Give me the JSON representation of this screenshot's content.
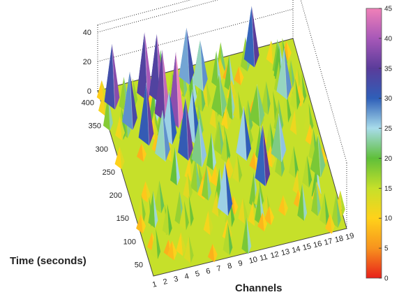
{
  "chart_data": {
    "type": "heatmap",
    "subtype": "3d-surface",
    "title": "",
    "xlabel": "Channels",
    "ylabel": "Time (seconds)",
    "zlabel": "",
    "x_ticks": [
      "1",
      "2",
      "3",
      "4",
      "5",
      "6",
      "7",
      "8",
      "9",
      "10",
      "11",
      "12",
      "13",
      "14",
      "15",
      "16",
      "17",
      "18",
      "19"
    ],
    "y_ticks": [
      "50",
      "100",
      "150",
      "200",
      "250",
      "300",
      "350",
      "400"
    ],
    "z_ticks": [
      "0",
      "20",
      "40"
    ],
    "xlim": [
      1,
      19
    ],
    "ylim": [
      25,
      425
    ],
    "zlim": [
      0,
      45
    ],
    "colorbar": {
      "min": 0,
      "max": 45,
      "ticks": [
        "0",
        "5",
        "10",
        "15",
        "20",
        "25",
        "30",
        "35",
        "40",
        "45"
      ],
      "colors": [
        "#e8201a",
        "#f7931e",
        "#ffd21a",
        "#c6e02a",
        "#5fbf3a",
        "#a8dcea",
        "#2f5fb8",
        "#5a3c9a",
        "#a758b8",
        "#f080b8"
      ]
    },
    "peaks": [
      {
        "channel": 2,
        "time": 400,
        "value": 38
      },
      {
        "channel": 3,
        "time": 350,
        "value": 33
      },
      {
        "channel": 4,
        "time": 310,
        "value": 36
      },
      {
        "channel": 5,
        "time": 400,
        "value": 40
      },
      {
        "channel": 5,
        "time": 270,
        "value": 28
      },
      {
        "channel": 6,
        "time": 390,
        "value": 40
      },
      {
        "channel": 6,
        "time": 350,
        "value": 42
      },
      {
        "channel": 6,
        "time": 300,
        "value": 30
      },
      {
        "channel": 7,
        "time": 330,
        "value": 45
      },
      {
        "channel": 7,
        "time": 260,
        "value": 36
      },
      {
        "channel": 8,
        "time": 290,
        "value": 30
      },
      {
        "channel": 8,
        "time": 240,
        "value": 26
      },
      {
        "channel": 9,
        "time": 410,
        "value": 32
      },
      {
        "channel": 9,
        "time": 130,
        "value": 30
      },
      {
        "channel": 10,
        "time": 390,
        "value": 28
      },
      {
        "channel": 11,
        "time": 330,
        "value": 22
      },
      {
        "channel": 12,
        "time": 230,
        "value": 30
      },
      {
        "channel": 13,
        "time": 170,
        "value": 35
      },
      {
        "channel": 14,
        "time": 290,
        "value": 22
      },
      {
        "channel": 15,
        "time": 410,
        "value": 35
      },
      {
        "channel": 15,
        "time": 210,
        "value": 26
      },
      {
        "channel": 17,
        "time": 330,
        "value": 28
      },
      {
        "channel": 18,
        "time": 160,
        "value": 22
      }
    ]
  }
}
